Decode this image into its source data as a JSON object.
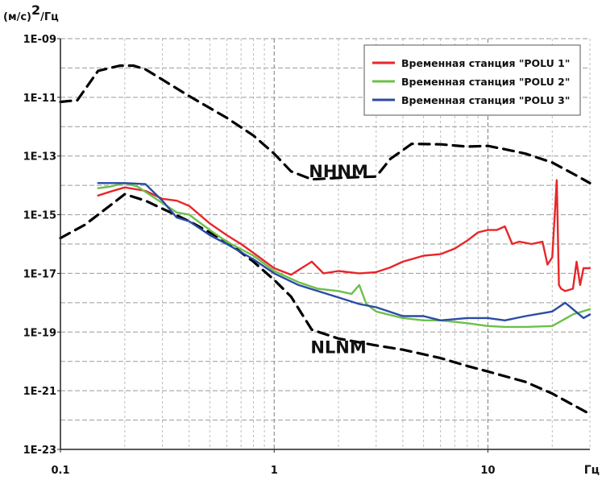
{
  "chart_data": {
    "type": "line",
    "title": "",
    "xlabel": "Гц",
    "ylabel": "(м/с)²/Гц",
    "ylabel_parts": {
      "lead": "(м/с)",
      "sup": "2",
      "tail": "/Гц"
    },
    "x_scale": "log",
    "y_scale": "log",
    "xlim": [
      0.1,
      30
    ],
    "ylim": [
      1e-23,
      1e-09
    ],
    "x_ticks": [
      {
        "value": 0.1,
        "label": "0.1"
      },
      {
        "value": 1,
        "label": "1"
      },
      {
        "value": 10,
        "label": "10"
      }
    ],
    "y_ticks": [
      {
        "value": 1e-09,
        "label": "1E-09"
      },
      {
        "value": 1e-11,
        "label": "1E-11"
      },
      {
        "value": 1e-13,
        "label": "1E-13"
      },
      {
        "value": 1e-15,
        "label": "1E-15"
      },
      {
        "value": 1e-17,
        "label": "1E-17"
      },
      {
        "value": 1e-19,
        "label": "1E-19"
      },
      {
        "value": 1e-21,
        "label": "1E-21"
      },
      {
        "value": 1e-23,
        "label": "1E-23"
      }
    ],
    "grid": true,
    "legend_position": "top-right",
    "annotations": [
      {
        "text": "NHNM",
        "x": 2,
        "y": 3e-14
      },
      {
        "text": "NLNM",
        "x": 2,
        "y": 3e-20
      }
    ],
    "series": [
      {
        "key": "nhnm",
        "label": "NHNM",
        "color": "#000000",
        "style": "dashed",
        "in_legend": false,
        "x": [
          0.1,
          0.12,
          0.15,
          0.19,
          0.22,
          0.25,
          0.3,
          0.4,
          0.6,
          0.8,
          1.0,
          1.2,
          1.5,
          2.0,
          3.0,
          3.5,
          4.4,
          6.0,
          8.0,
          10.0,
          12.0,
          15.0,
          20.0,
          25.0,
          30.0
        ],
        "y": [
          7e-12,
          8e-12,
          8e-11,
          1.2e-10,
          1.2e-10,
          9e-11,
          4e-11,
          1.1e-11,
          2e-12,
          5e-13,
          1.2e-13,
          3e-14,
          1.6e-14,
          1.8e-14,
          2e-14,
          8e-14,
          2.6e-13,
          2.5e-13,
          2.1e-13,
          2.2e-13,
          1.7e-13,
          1.2e-13,
          6e-14,
          2.5e-14,
          1.2e-14
        ]
      },
      {
        "key": "nlnm",
        "label": "NLNM",
        "color": "#000000",
        "style": "dashed",
        "in_legend": false,
        "x": [
          0.1,
          0.13,
          0.17,
          0.2,
          0.25,
          0.3,
          0.4,
          0.6,
          0.8,
          1.0,
          1.2,
          1.5,
          2.0,
          3.0,
          4.0,
          6.0,
          8.0,
          10.0,
          15.0,
          20.0,
          30.0
        ],
        "y": [
          1.6e-16,
          4.5e-16,
          2e-15,
          5e-15,
          3e-15,
          1.6e-15,
          6e-16,
          1.2e-16,
          2.5e-17,
          6e-18,
          1.6e-18,
          1.2e-19,
          6e-20,
          3.5e-20,
          2.5e-20,
          1.3e-20,
          7e-21,
          4.5e-21,
          2e-21,
          8e-22,
          1.6e-22
        ]
      },
      {
        "key": "polu1",
        "label": "Временная станция \"POLU 1\"",
        "color": "#e8262a",
        "style": "solid",
        "in_legend": true,
        "x": [
          0.15,
          0.17,
          0.2,
          0.25,
          0.3,
          0.35,
          0.4,
          0.5,
          0.6,
          0.7,
          0.8,
          1.0,
          1.2,
          1.3,
          1.5,
          1.7,
          2.0,
          2.5,
          3.0,
          3.5,
          4.0,
          5.0,
          6.0,
          7.0,
          8.0,
          9.0,
          10.0,
          11.0,
          12.0,
          13.0,
          14.0,
          15.0,
          16.0,
          18.0,
          19.0,
          20.0,
          21.0,
          21.5,
          22.0,
          23.0,
          25.0,
          26.0,
          27.0,
          28.0,
          30.0
        ],
        "y": [
          4.5e-15,
          6e-15,
          8.5e-15,
          6.5e-15,
          3.5e-15,
          3e-15,
          2e-15,
          5e-16,
          2e-16,
          1e-16,
          5e-17,
          1.5e-17,
          9e-18,
          1.3e-17,
          2.5e-17,
          1e-17,
          1.2e-17,
          1e-17,
          1.1e-17,
          1.6e-17,
          2.5e-17,
          4e-17,
          4.5e-17,
          7e-17,
          1.3e-16,
          2.5e-16,
          3e-16,
          3e-16,
          4e-16,
          1e-16,
          1.2e-16,
          1.1e-16,
          1e-16,
          1.2e-16,
          2e-17,
          3.5e-17,
          1.5e-14,
          4e-18,
          3e-18,
          2.5e-18,
          3e-18,
          2.5e-17,
          4e-18,
          1.5e-17,
          1.5e-17
        ]
      },
      {
        "key": "polu2",
        "label": "Временная станция \"POLU 2\"",
        "color": "#6cc04a",
        "style": "solid",
        "in_legend": true,
        "x": [
          0.15,
          0.17,
          0.2,
          0.23,
          0.25,
          0.3,
          0.35,
          0.4,
          0.5,
          0.6,
          0.8,
          1.0,
          1.3,
          1.6,
          2.0,
          2.3,
          2.5,
          2.7,
          3.0,
          4.0,
          5.0,
          6.0,
          8.0,
          10.0,
          12.0,
          15.0,
          20.0,
          25.0,
          30.0
        ],
        "y": [
          8e-15,
          9e-15,
          1.2e-14,
          9e-15,
          6e-15,
          2.5e-15,
          1.2e-15,
          1e-15,
          3e-16,
          1.2e-16,
          4e-17,
          1.2e-17,
          5e-18,
          3e-18,
          2.5e-18,
          2e-18,
          4e-18,
          9e-19,
          5e-19,
          3e-19,
          2.5e-19,
          2.5e-19,
          2e-19,
          1.6e-19,
          1.5e-19,
          1.5e-19,
          1.6e-19,
          4e-19,
          6e-19
        ]
      },
      {
        "key": "polu3",
        "label": "Временная станция \"POLU 3\"",
        "color": "#2b4aa6",
        "style": "solid",
        "in_legend": true,
        "x": [
          0.15,
          0.18,
          0.2,
          0.25,
          0.3,
          0.35,
          0.4,
          0.5,
          0.6,
          0.8,
          1.0,
          1.3,
          1.6,
          2.0,
          2.5,
          3.0,
          4.0,
          5.0,
          6.0,
          8.0,
          10.0,
          12.0,
          15.0,
          20.0,
          23.0,
          25.0,
          28.0,
          30.0
        ],
        "y": [
          1.2e-14,
          1.2e-14,
          1.2e-14,
          1.1e-14,
          3e-15,
          8e-16,
          6e-16,
          2e-16,
          1e-16,
          3e-17,
          1e-17,
          4e-18,
          2.5e-18,
          1.5e-18,
          9e-19,
          7e-19,
          3.5e-19,
          3.5e-19,
          2.5e-19,
          3e-19,
          3e-19,
          2.5e-19,
          3.5e-19,
          5e-19,
          1e-18,
          6e-19,
          3e-19,
          4e-19
        ]
      }
    ]
  }
}
